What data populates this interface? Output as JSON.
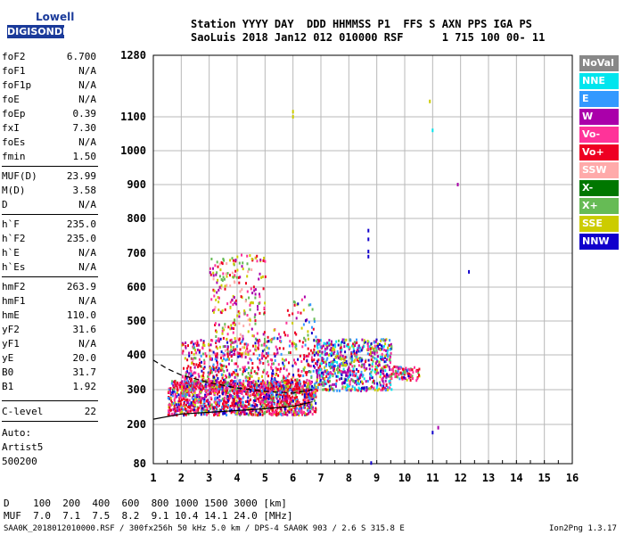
{
  "logo": {
    "top": "Lowell",
    "bottom": "DIGISONDE"
  },
  "header": {
    "line1": "Station YYYY DAY  DDD HHMMSS P1  FFS S AXN PPS IGA PS",
    "line2": "SaoLuis 2018 Jan12 012 010000 RSF      1 715 100 00- 11"
  },
  "params": [
    {
      "label": "foF2",
      "value": "6.700"
    },
    {
      "label": "foF1",
      "value": "N/A"
    },
    {
      "label": "foF1p",
      "value": "N/A"
    },
    {
      "label": "foE",
      "value": "N/A"
    },
    {
      "label": "foEp",
      "value": "0.39"
    },
    {
      "label": "fxI",
      "value": "7.30"
    },
    {
      "label": "foEs",
      "value": "N/A"
    },
    {
      "label": "fmin",
      "value": "1.50"
    },
    {
      "label": "MUF(D)",
      "value": "23.99"
    },
    {
      "label": "M(D)",
      "value": "3.58"
    },
    {
      "label": "D",
      "value": "N/A"
    },
    {
      "label": "h`F",
      "value": "235.0"
    },
    {
      "label": "h`F2",
      "value": "235.0"
    },
    {
      "label": "h`E",
      "value": "N/A"
    },
    {
      "label": "h`Es",
      "value": "N/A"
    },
    {
      "label": "hmF2",
      "value": "263.9"
    },
    {
      "label": "hmF1",
      "value": "N/A"
    },
    {
      "label": "hmE",
      "value": "110.0"
    },
    {
      "label": "yF2",
      "value": "31.6"
    },
    {
      "label": "yF1",
      "value": "N/A"
    },
    {
      "label": "yE",
      "value": "20.0"
    },
    {
      "label": "B0",
      "value": "31.7"
    },
    {
      "label": "B1",
      "value": "1.92"
    },
    {
      "label": "C-level",
      "value": "22"
    }
  ],
  "auto": [
    "Auto:",
    "Artist5",
    "500200"
  ],
  "legend": [
    {
      "label": "NoVal",
      "color": "#888888"
    },
    {
      "label": "NNE",
      "color": "#00e5ee"
    },
    {
      "label": "E",
      "color": "#3399ff"
    },
    {
      "label": "W",
      "color": "#aa00aa"
    },
    {
      "label": "Vo-",
      "color": "#ff3399"
    },
    {
      "label": "Vo+",
      "color": "#ee0022"
    },
    {
      "label": "SSW",
      "color": "#ffaaaa"
    },
    {
      "label": "X-",
      "color": "#007700"
    },
    {
      "label": "X+",
      "color": "#66bb55"
    },
    {
      "label": "SSE",
      "color": "#cccc00"
    },
    {
      "label": "NNW",
      "color": "#1100cc"
    }
  ],
  "chart_data": {
    "type": "scatter",
    "x_ticks": [
      1,
      2,
      3,
      4,
      5,
      6,
      7,
      8,
      9,
      10,
      11,
      12,
      13,
      14,
      15,
      16
    ],
    "y_ticks": [
      80,
      200,
      300,
      400,
      500,
      600,
      700,
      800,
      900,
      1000,
      1100,
      1280
    ],
    "xlim": [
      1,
      16
    ],
    "ylim": [
      80,
      1280
    ],
    "y_scale": "nonlinear (ionogram virtual height)",
    "grid": true,
    "traces": [
      {
        "name": "fitted O-trace (solid)",
        "x": [
          1.0,
          2.0,
          3.0,
          4.0,
          5.0,
          6.0,
          6.7
        ],
        "y": [
          215,
          230,
          235,
          240,
          245,
          252,
          265
        ]
      },
      {
        "name": "profile (dashed)",
        "x": [
          1.0,
          1.5,
          2.0,
          3.0,
          4.0,
          5.0,
          6.0,
          6.7
        ],
        "y": [
          385,
          360,
          342,
          320,
          305,
          295,
          290,
          300
        ]
      }
    ],
    "echo_regions": [
      {
        "x_range": [
          1.5,
          6.8
        ],
        "y_range": [
          230,
          330
        ],
        "dominant": "Vo+"
      },
      {
        "x_range": [
          2.0,
          6.8
        ],
        "y_range": [
          300,
          600
        ],
        "dominant": "Vo+"
      },
      {
        "x_range": [
          3.0,
          5.0
        ],
        "y_range": [
          400,
          700
        ],
        "dominant": "SSE"
      },
      {
        "x_range": [
          6.8,
          9.5
        ],
        "y_range": [
          300,
          450
        ],
        "dominant": "W"
      },
      {
        "x_range": [
          9.5,
          10.5
        ],
        "y_range": [
          330,
          370
        ],
        "dominant": "Vo+"
      }
    ],
    "isolated_points": [
      {
        "x": 8.7,
        "y": 765,
        "color": "NNW"
      },
      {
        "x": 8.7,
        "y": 740,
        "color": "NNW"
      },
      {
        "x": 8.7,
        "y": 705,
        "color": "NNW"
      },
      {
        "x": 8.7,
        "y": 690,
        "color": "NNW"
      },
      {
        "x": 8.8,
        "y": 82,
        "color": "NNW"
      },
      {
        "x": 11.0,
        "y": 1060,
        "color": "NNE"
      },
      {
        "x": 11.9,
        "y": 900,
        "color": "W"
      },
      {
        "x": 12.3,
        "y": 645,
        "color": "NNW"
      },
      {
        "x": 11.2,
        "y": 190,
        "color": "W"
      },
      {
        "x": 11.0,
        "y": 175,
        "color": "NNW"
      },
      {
        "x": 10.9,
        "y": 1145,
        "color": "SSE"
      },
      {
        "x": 6.0,
        "y": 1115,
        "color": "SSE"
      },
      {
        "x": 6.0,
        "y": 1100,
        "color": "SSE"
      }
    ]
  },
  "footer": {
    "row1": "D    100  200  400  600  800 1000 1500 3000 [km]",
    "row2": "MUF  7.0  7.1  7.5  8.2  9.1 10.4 14.1 24.0 [MHz]",
    "row3": "SAA0K_2018012010000.RSF / 300fx256h 50 kHz 5.0 km / DPS-4 SAA0K 903 / 2.6 S 315.8 E",
    "version": "Ion2Png 1.3.17"
  }
}
